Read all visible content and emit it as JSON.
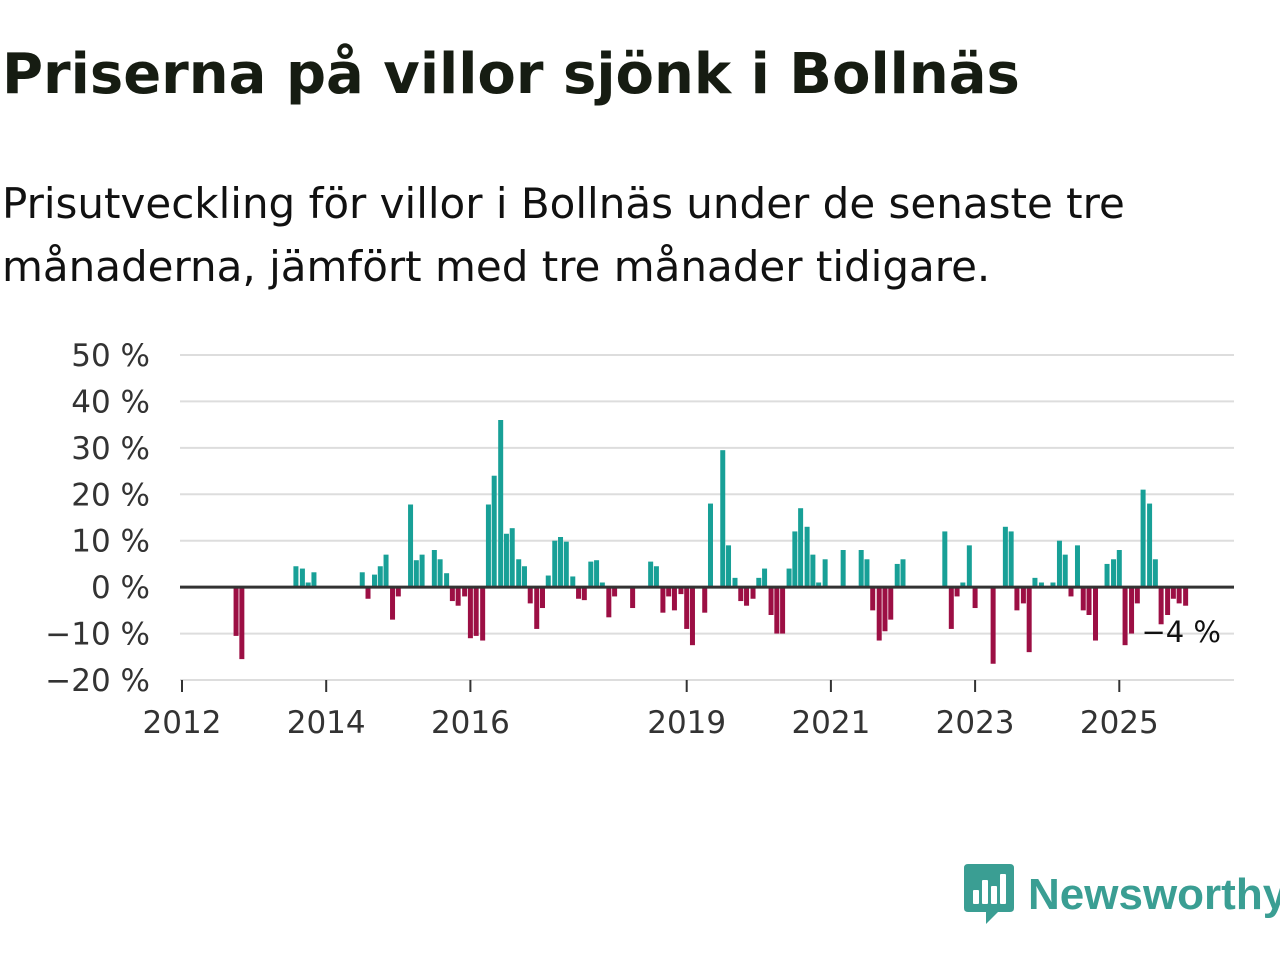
{
  "title": "Priserna på villor sjönk i Bollnäs",
  "subtitle": "Prisutveckling för villor i Bollnäs under de senaste tre månaderna, jämfört med tre månader tidigare.",
  "brand": {
    "name": "Newsworthy",
    "icon": "newsworthy-logo-icon"
  },
  "colors": {
    "positive": "#18a097",
    "negative": "#9c0f44",
    "grid": "#dddddd",
    "zero": "#333333",
    "text": "#111111"
  },
  "chart_data": {
    "type": "bar",
    "title": "Priserna på villor sjönk i Bollnäs",
    "ylabel": "",
    "xlabel": "",
    "ylim": [
      -20,
      50
    ],
    "xlim": [
      2012,
      2026.5
    ],
    "y_ticks": [
      50,
      40,
      30,
      20,
      10,
      0,
      -10,
      -20
    ],
    "y_tick_labels": [
      "50 %",
      "40 %",
      "30 %",
      "20 %",
      "10 %",
      "0 %",
      "−10 %",
      "−20 %"
    ],
    "x_ticks": [
      2012,
      2014,
      2016,
      2019,
      2021,
      2023,
      2025
    ],
    "x_tick_labels": [
      "2012",
      "2014",
      "2016",
      "2019",
      "2021",
      "2023",
      "2025"
    ],
    "grid": true,
    "annotation": {
      "label": "−4 %",
      "x": 2026.0,
      "y": -4
    },
    "series": [
      {
        "name": "Prisutveckling",
        "unit": "%",
        "points": [
          [
            2012.75,
            -10.5
          ],
          [
            2012.83,
            -15.5
          ],
          [
            2013.58,
            4.5
          ],
          [
            2013.67,
            4
          ],
          [
            2013.75,
            1
          ],
          [
            2013.83,
            3.2
          ],
          [
            2014.5,
            3.2
          ],
          [
            2014.58,
            -2.5
          ],
          [
            2014.67,
            2.7
          ],
          [
            2014.75,
            4.5
          ],
          [
            2014.83,
            7
          ],
          [
            2014.92,
            -7
          ],
          [
            2015.0,
            -2
          ],
          [
            2015.17,
            17.8
          ],
          [
            2015.25,
            5.8
          ],
          [
            2015.33,
            7
          ],
          [
            2015.5,
            8
          ],
          [
            2015.58,
            6
          ],
          [
            2015.67,
            3
          ],
          [
            2015.75,
            -3
          ],
          [
            2015.83,
            -4
          ],
          [
            2015.92,
            -2
          ],
          [
            2016.0,
            -11
          ],
          [
            2016.08,
            -10.5
          ],
          [
            2016.17,
            -11.5
          ],
          [
            2016.25,
            17.8
          ],
          [
            2016.33,
            24
          ],
          [
            2016.42,
            36
          ],
          [
            2016.5,
            11.5
          ],
          [
            2016.58,
            12.7
          ],
          [
            2016.67,
            6
          ],
          [
            2016.75,
            4.5
          ],
          [
            2016.83,
            -3.5
          ],
          [
            2016.92,
            -9
          ],
          [
            2017.0,
            -4.5
          ],
          [
            2017.08,
            2.5
          ],
          [
            2017.17,
            10
          ],
          [
            2017.25,
            10.8
          ],
          [
            2017.33,
            9.8
          ],
          [
            2017.42,
            2.3
          ],
          [
            2017.5,
            -2.5
          ],
          [
            2017.58,
            -2.8
          ],
          [
            2017.67,
            5.5
          ],
          [
            2017.75,
            5.8
          ],
          [
            2017.83,
            1
          ],
          [
            2017.92,
            -6.5
          ],
          [
            2018.0,
            -2
          ],
          [
            2018.25,
            -4.5
          ],
          [
            2018.5,
            5.5
          ],
          [
            2018.58,
            4.5
          ],
          [
            2018.67,
            -5.5
          ],
          [
            2018.75,
            -2
          ],
          [
            2018.83,
            -5
          ],
          [
            2018.92,
            -1.5
          ],
          [
            2019.0,
            -9
          ],
          [
            2019.08,
            -12.5
          ],
          [
            2019.25,
            -5.5
          ],
          [
            2019.33,
            18
          ],
          [
            2019.5,
            29.5
          ],
          [
            2019.58,
            9
          ],
          [
            2019.67,
            2
          ],
          [
            2019.75,
            -3
          ],
          [
            2019.83,
            -4
          ],
          [
            2019.92,
            -2.5
          ],
          [
            2020.0,
            2
          ],
          [
            2020.08,
            4
          ],
          [
            2020.17,
            -6
          ],
          [
            2020.25,
            -10
          ],
          [
            2020.33,
            -10
          ],
          [
            2020.42,
            4
          ],
          [
            2020.5,
            12
          ],
          [
            2020.58,
            17
          ],
          [
            2020.67,
            13
          ],
          [
            2020.75,
            7
          ],
          [
            2020.83,
            1
          ],
          [
            2020.92,
            6
          ],
          [
            2021.17,
            8
          ],
          [
            2021.42,
            8
          ],
          [
            2021.5,
            6
          ],
          [
            2021.58,
            -5
          ],
          [
            2021.67,
            -11.5
          ],
          [
            2021.75,
            -9.5
          ],
          [
            2021.83,
            -7
          ],
          [
            2021.92,
            5
          ],
          [
            2022.0,
            6
          ],
          [
            2022.58,
            12
          ],
          [
            2022.67,
            -9
          ],
          [
            2022.75,
            -2
          ],
          [
            2022.83,
            1
          ],
          [
            2022.92,
            9
          ],
          [
            2023.0,
            -4.5
          ],
          [
            2023.25,
            -16.5
          ],
          [
            2023.42,
            13
          ],
          [
            2023.5,
            12
          ],
          [
            2023.58,
            -5
          ],
          [
            2023.67,
            -3.5
          ],
          [
            2023.75,
            -14
          ],
          [
            2023.83,
            2
          ],
          [
            2023.92,
            1
          ],
          [
            2024.08,
            1
          ],
          [
            2024.17,
            10
          ],
          [
            2024.25,
            7
          ],
          [
            2024.33,
            -2
          ],
          [
            2024.42,
            9
          ],
          [
            2024.5,
            -5
          ],
          [
            2024.58,
            -6
          ],
          [
            2024.67,
            -11.5
          ],
          [
            2024.83,
            5
          ],
          [
            2024.92,
            6
          ],
          [
            2025.0,
            8
          ],
          [
            2025.08,
            -12.5
          ],
          [
            2025.17,
            -10
          ],
          [
            2025.25,
            -3.5
          ],
          [
            2025.33,
            21
          ],
          [
            2025.42,
            18
          ],
          [
            2025.5,
            6
          ],
          [
            2025.58,
            -8
          ],
          [
            2025.67,
            -6
          ],
          [
            2025.75,
            -2.5
          ],
          [
            2025.83,
            -3.5
          ],
          [
            2025.92,
            -4
          ]
        ]
      }
    ]
  }
}
